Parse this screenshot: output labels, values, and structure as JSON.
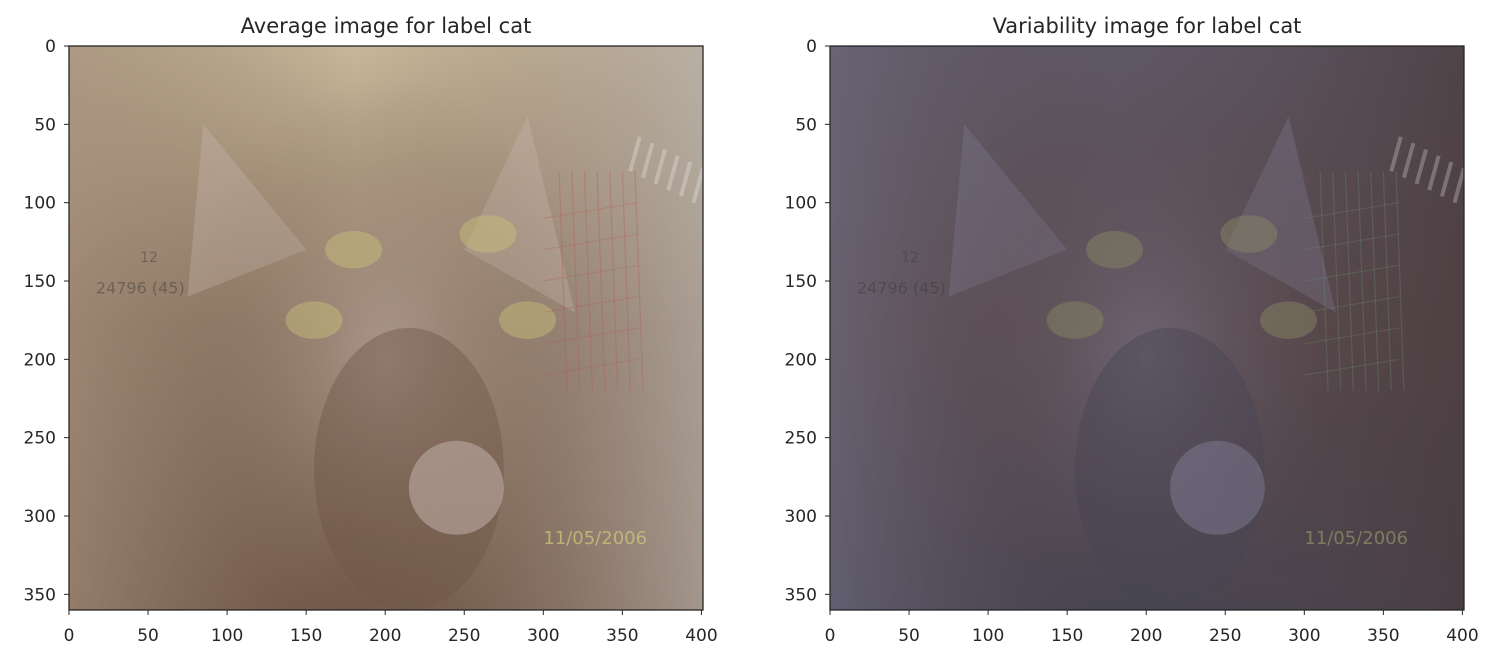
{
  "chart_data": [
    {
      "type": "image",
      "title": "Average image for label cat",
      "xlim": [
        0,
        401
      ],
      "ylim": [
        360,
        0
      ],
      "xticks": [
        0,
        50,
        100,
        150,
        200,
        250,
        300,
        350,
        400
      ],
      "yticks": [
        0,
        50,
        100,
        150,
        200,
        250,
        300,
        350
      ],
      "image_text": [
        "12",
        "24796 (45)",
        "11/05/2006"
      ],
      "image_tone": {
        "top": "#c7b89a",
        "mid": "#8a7360",
        "bottom": "#6f5646",
        "left": "#a38d7a",
        "right": "#b4aca6",
        "accent": "#c8b7b0",
        "stamp": "#c9c27a",
        "grid": "#b55a5a"
      }
    },
    {
      "type": "image",
      "title": "Variability image for label cat",
      "xlim": [
        0,
        401
      ],
      "ylim": [
        360,
        0
      ],
      "xticks": [
        0,
        50,
        100,
        150,
        200,
        250,
        300,
        350,
        400
      ],
      "yticks": [
        0,
        50,
        100,
        150,
        200,
        250,
        300,
        350
      ],
      "image_text": [
        "12",
        "24796 (45)",
        "11/05/2006"
      ],
      "image_tone": {
        "top": "#5e5866",
        "mid": "#5a4a4e",
        "bottom": "#464452",
        "left": "#6d6a7d",
        "right": "#4a3c3e",
        "accent": "#7f7c93",
        "stamp": "#8a8a66",
        "grid": "#6a8a6a"
      }
    }
  ]
}
